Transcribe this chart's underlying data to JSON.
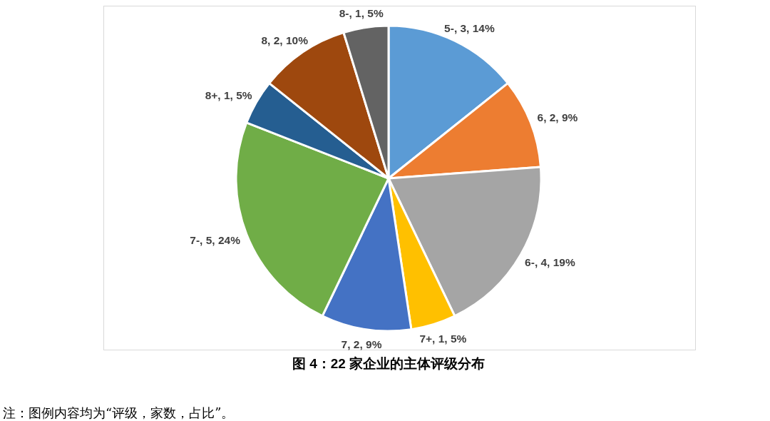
{
  "chart_data": {
    "type": "pie",
    "title": "图 4：22 家企业的主体评级分布",
    "categories": [
      "5-",
      "6",
      "6-",
      "7+",
      "7",
      "7-",
      "8+",
      "8",
      "8-"
    ],
    "values": [
      3,
      2,
      4,
      1,
      2,
      5,
      1,
      2,
      1
    ],
    "value_labels": [
      ", 3, 14%",
      ", 2, 9%",
      ", 4, 19%",
      ", 1, 5%",
      ", 2, 9%",
      ", 5, 24%",
      ", 1, 5%",
      ", 2, 10%",
      ", 1, 5%"
    ],
    "colors": [
      "#5b9bd5",
      "#ed7d31",
      "#a5a5a5",
      "#ffc000",
      "#4472c4",
      "#70ad47",
      "#255e91",
      "#9e480e",
      "#636363"
    ],
    "annotations": [
      "注：图例内容均为“评级，家数，占比”。"
    ]
  }
}
